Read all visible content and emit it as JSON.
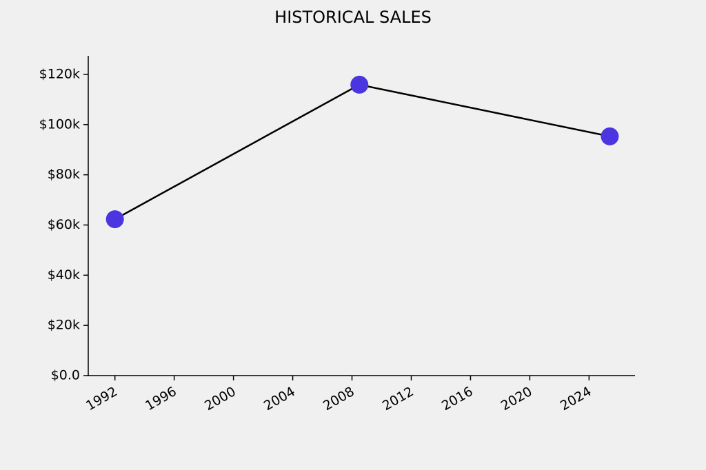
{
  "chart_data": {
    "type": "line",
    "title": "HISTORICAL SALES",
    "x": [
      1992,
      2008.5,
      2025.4
    ],
    "series": [
      {
        "values": [
          62300,
          115900,
          95300
        ],
        "color": "#4a35e0"
      }
    ],
    "line_color": "#000000",
    "xlim": [
      1990.2,
      2027.1
    ],
    "xticks": [
      1992,
      1996,
      2000,
      2004,
      2008,
      2012,
      2016,
      2020,
      2024
    ],
    "ylim": [
      0,
      127400
    ],
    "yticks": [
      {
        "value": 0,
        "label": "$0.0"
      },
      {
        "value": 20000,
        "label": "$20k"
      },
      {
        "value": 40000,
        "label": "$40k"
      },
      {
        "value": 60000,
        "label": "$60k"
      },
      {
        "value": 80000,
        "label": "$80k"
      },
      {
        "value": 100000,
        "label": "$100k"
      },
      {
        "value": 120000,
        "label": "$120k"
      }
    ],
    "grid": false
  }
}
